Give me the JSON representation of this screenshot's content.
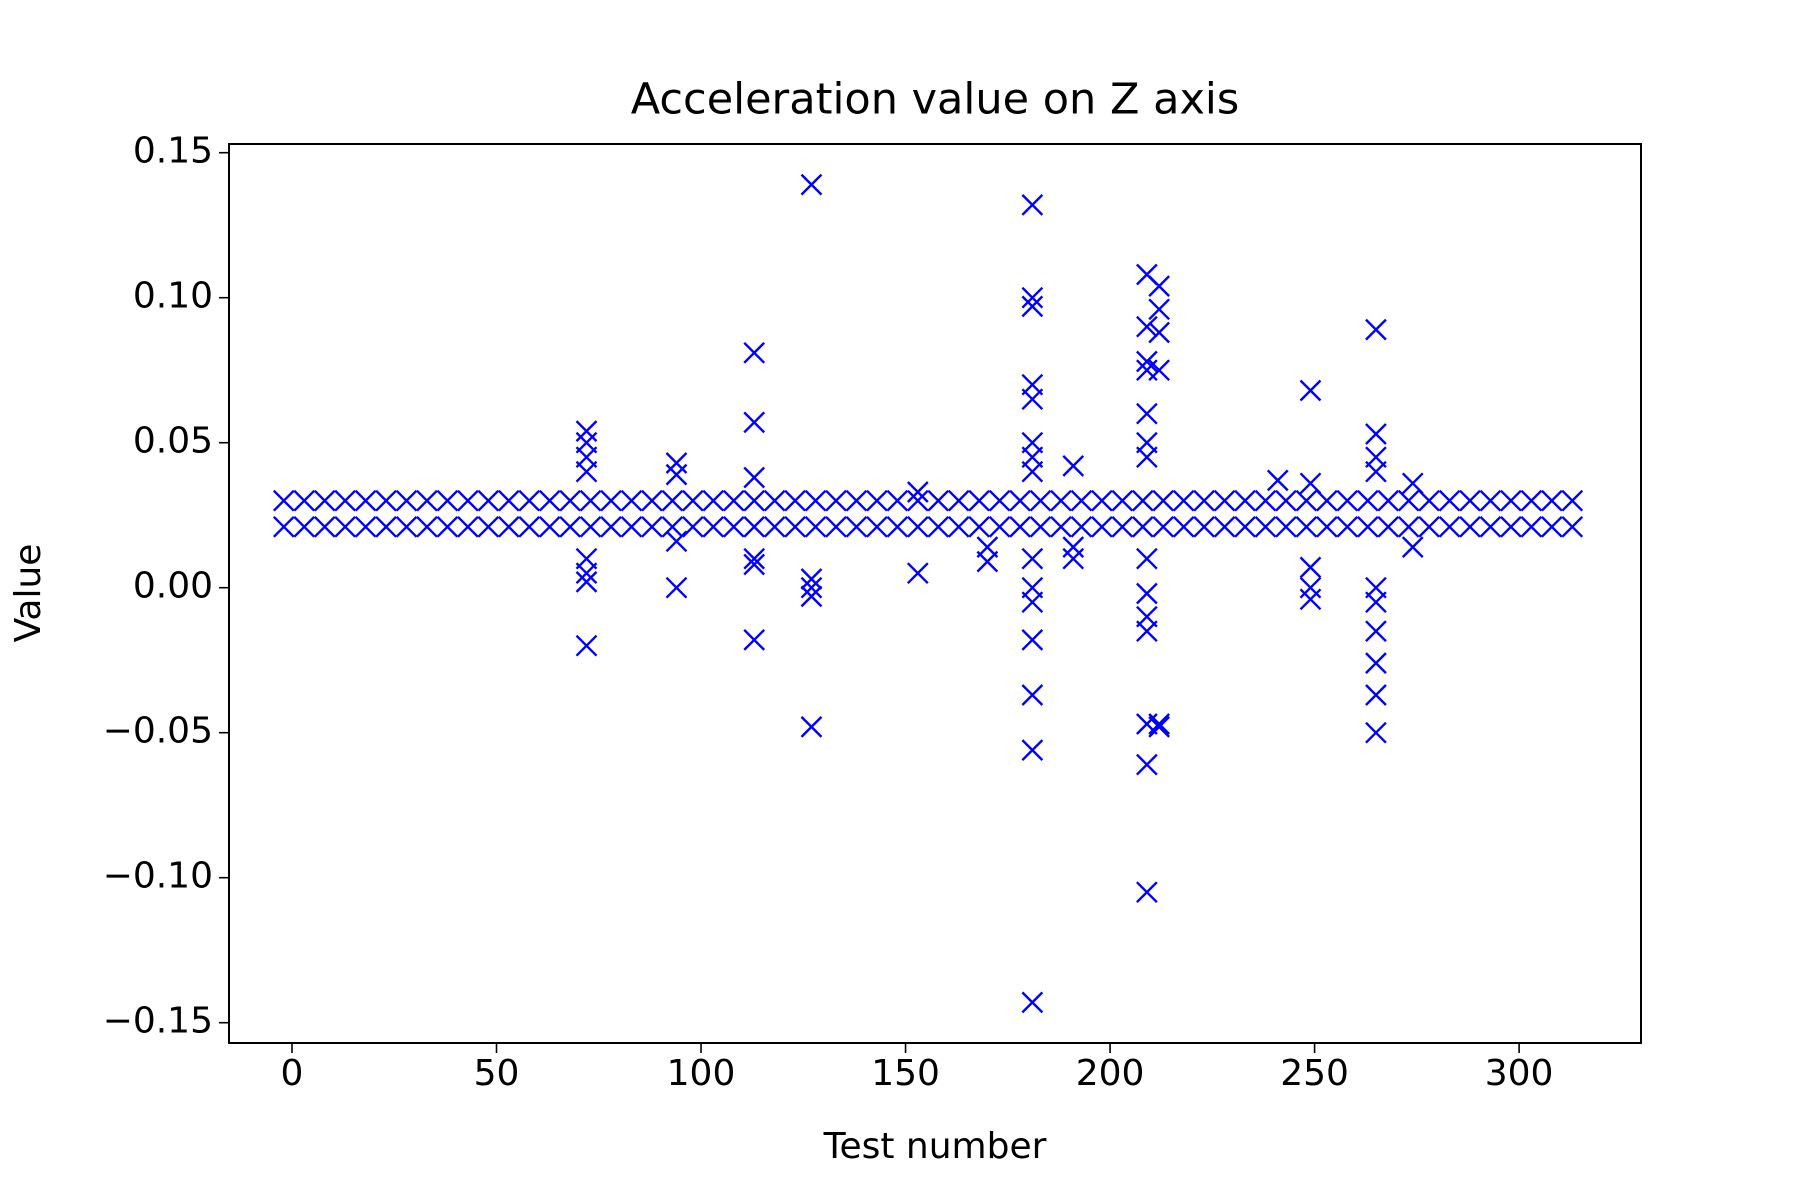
{
  "chart_data": {
    "type": "scatter",
    "title": "Acceleration value on Z axis",
    "x_label": "Test number",
    "y_label": "Value",
    "xlim": [
      -15.4,
      329.8
    ],
    "ylim": [
      -0.157,
      0.153
    ],
    "xticks": [
      0,
      50,
      100,
      150,
      200,
      250,
      300
    ],
    "yticks": [
      {
        "value": -0.15,
        "label": "−0.15"
      },
      {
        "value": -0.1,
        "label": "−0.10"
      },
      {
        "value": -0.05,
        "label": "−0.05"
      },
      {
        "value": 0,
        "label": "0.00"
      },
      0.05,
      {
        "value": 0.1,
        "label": "0.10"
      },
      0.15
    ],
    "grid": false,
    "marker": "x",
    "series": [
      {
        "color": "#0000ff",
        "x": [
          -2,
          3,
          8,
          13,
          18,
          23,
          28,
          33,
          38,
          43,
          48,
          53,
          58,
          63,
          68,
          73,
          78,
          83,
          88,
          93,
          98,
          103,
          108,
          113,
          118,
          123,
          128,
          133,
          138,
          143,
          148,
          153,
          158,
          163,
          168,
          173,
          178,
          183,
          188,
          193,
          198,
          203,
          208,
          213,
          218,
          223,
          228,
          233,
          238,
          243,
          248,
          253,
          258,
          263,
          268,
          273,
          278,
          283,
          288,
          293,
          298,
          303,
          308,
          313,
          -2,
          3,
          8,
          13,
          18,
          23,
          28,
          33,
          38,
          43,
          48,
          53,
          58,
          63,
          68,
          73,
          78,
          83,
          88,
          93,
          98,
          103,
          108,
          113,
          118,
          123,
          128,
          133,
          138,
          143,
          148,
          153,
          158,
          163,
          168,
          173,
          178,
          183,
          188,
          193,
          198,
          203,
          208,
          213,
          218,
          223,
          228,
          233,
          238,
          243,
          248,
          253,
          258,
          263,
          268,
          273,
          278,
          283,
          288,
          293,
          298,
          303,
          308,
          313,
          72,
          72,
          72,
          72,
          72,
          72,
          72,
          72,
          94,
          94,
          94,
          94,
          113,
          113,
          113,
          113,
          113,
          113,
          127,
          127,
          127,
          127,
          127,
          153,
          153,
          170,
          170,
          181,
          181,
          181,
          181,
          181,
          181,
          181,
          181,
          181,
          181,
          181,
          181,
          181,
          181,
          181,
          191,
          191,
          191,
          209,
          209,
          209,
          209,
          209,
          209,
          209,
          209,
          209,
          209,
          209,
          209,
          209,
          209,
          212,
          212,
          212,
          212,
          212,
          212,
          241,
          249,
          249,
          249,
          249,
          249,
          265,
          265,
          265,
          265,
          265,
          265,
          265,
          265,
          265,
          265,
          274,
          274
        ],
        "y": [
          0.021,
          0.021,
          0.021,
          0.021,
          0.021,
          0.021,
          0.021,
          0.021,
          0.021,
          0.021,
          0.021,
          0.021,
          0.021,
          0.021,
          0.021,
          0.021,
          0.021,
          0.021,
          0.021,
          0.021,
          0.021,
          0.021,
          0.021,
          0.021,
          0.021,
          0.021,
          0.021,
          0.021,
          0.021,
          0.021,
          0.021,
          0.021,
          0.021,
          0.021,
          0.021,
          0.021,
          0.021,
          0.021,
          0.021,
          0.021,
          0.021,
          0.021,
          0.021,
          0.021,
          0.021,
          0.021,
          0.021,
          0.021,
          0.021,
          0.021,
          0.021,
          0.021,
          0.021,
          0.021,
          0.021,
          0.021,
          0.021,
          0.021,
          0.021,
          0.021,
          0.021,
          0.021,
          0.021,
          0.021,
          0.03,
          0.03,
          0.03,
          0.03,
          0.03,
          0.03,
          0.03,
          0.03,
          0.03,
          0.03,
          0.03,
          0.03,
          0.03,
          0.03,
          0.03,
          0.03,
          0.03,
          0.03,
          0.03,
          0.03,
          0.03,
          0.03,
          0.03,
          0.03,
          0.03,
          0.03,
          0.03,
          0.03,
          0.03,
          0.03,
          0.03,
          0.03,
          0.03,
          0.03,
          0.03,
          0.03,
          0.03,
          0.03,
          0.03,
          0.03,
          0.03,
          0.03,
          0.03,
          0.03,
          0.03,
          0.03,
          0.03,
          0.03,
          0.03,
          0.03,
          0.03,
          0.03,
          0.03,
          0.03,
          0.03,
          0.03,
          0.03,
          0.03,
          0.03,
          0.03,
          0.03,
          0.03,
          0.03,
          0.03,
          0.054,
          0.05,
          0.045,
          0.04,
          0.01,
          0.005,
          0.002,
          -0.02,
          0.043,
          0.039,
          0.016,
          0.0,
          0.081,
          0.057,
          0.038,
          0.01,
          0.008,
          -0.018,
          0.139,
          0.003,
          0.0,
          -0.003,
          -0.048,
          0.005,
          0.033,
          0.009,
          0.014,
          0.132,
          0.1,
          0.097,
          0.07,
          0.065,
          0.05,
          0.045,
          0.04,
          0.01,
          0.0,
          -0.005,
          -0.018,
          -0.037,
          -0.056,
          -0.143,
          0.042,
          0.014,
          0.01,
          0.108,
          0.09,
          0.078,
          0.075,
          0.06,
          0.05,
          0.045,
          0.01,
          -0.002,
          -0.01,
          -0.015,
          -0.047,
          -0.061,
          -0.105,
          0.104,
          0.096,
          0.088,
          0.075,
          -0.047,
          -0.048,
          0.037,
          0.068,
          0.036,
          0.007,
          0.0,
          -0.004,
          0.089,
          0.053,
          0.045,
          0.04,
          0.0,
          -0.005,
          -0.015,
          -0.026,
          -0.037,
          -0.05,
          0.036,
          0.014
        ]
      }
    ]
  }
}
